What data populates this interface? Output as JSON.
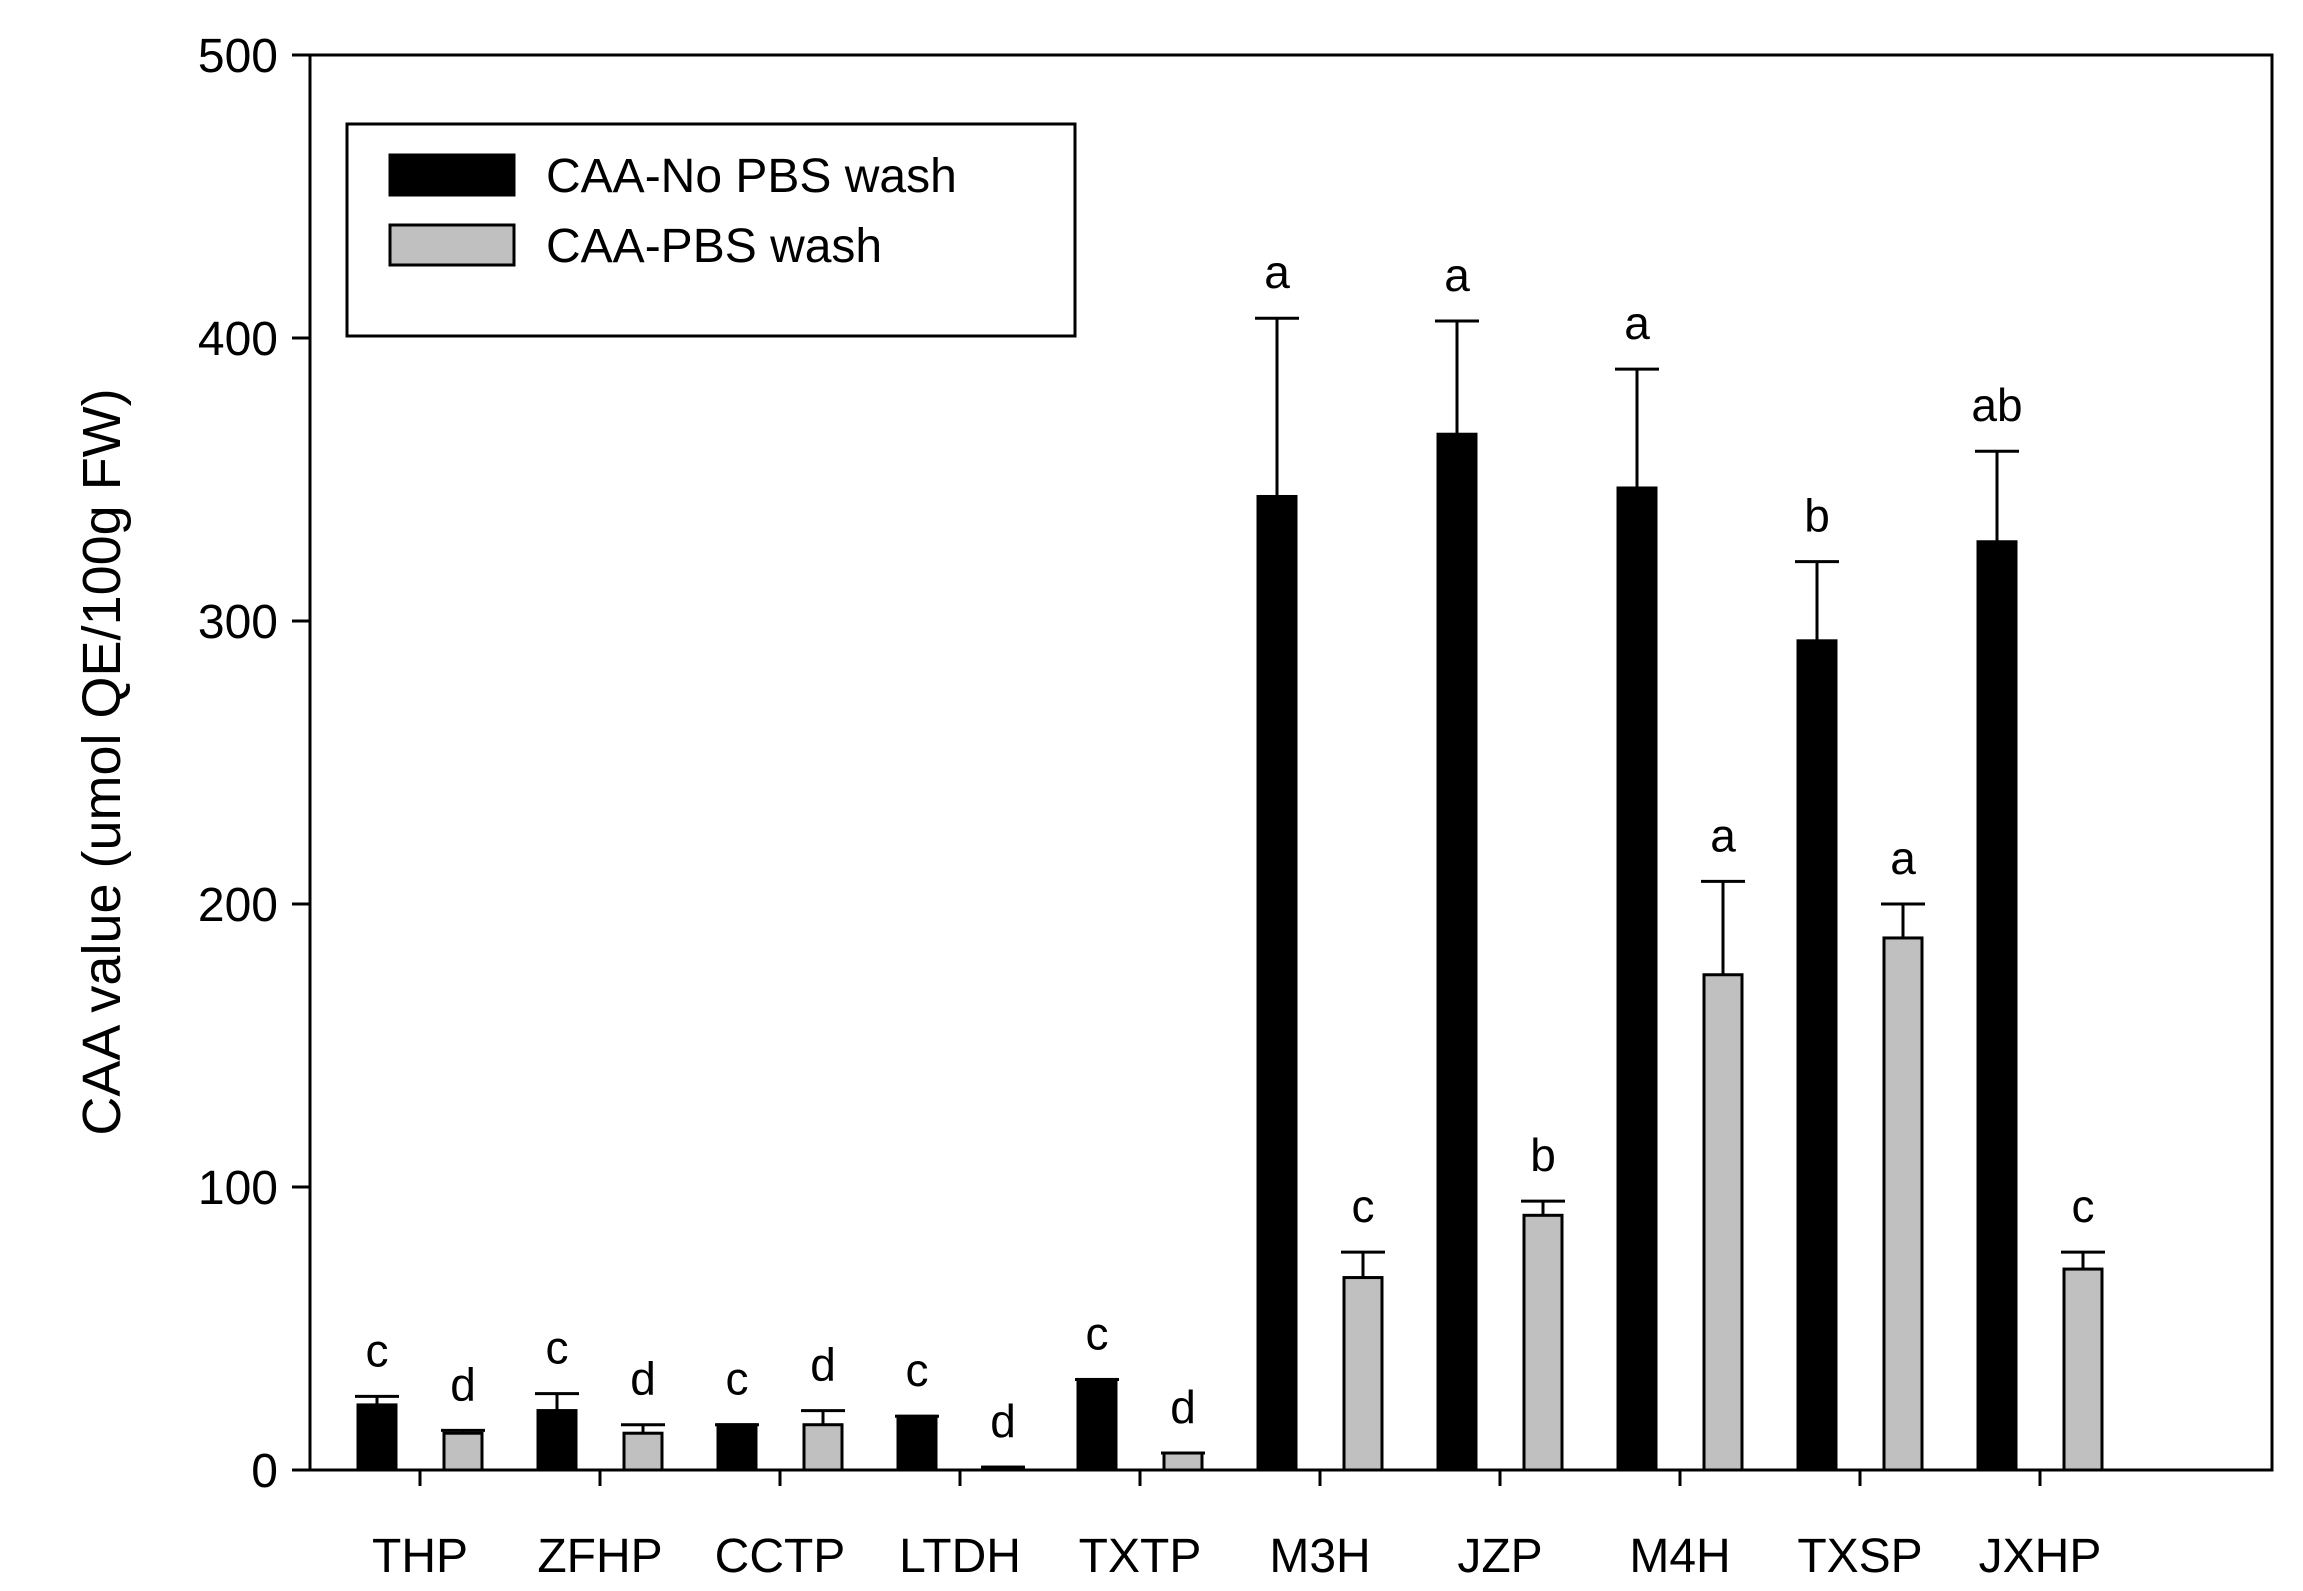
{
  "chart_data": {
    "type": "bar",
    "title": "",
    "xlabel": "",
    "ylabel": "CAA value (umol QE/100g FW)",
    "ylim": [
      0,
      500
    ],
    "yticks": [
      0,
      100,
      200,
      300,
      400,
      500
    ],
    "grid": false,
    "legend_position": "top-left",
    "categories": [
      "THP",
      "ZFHP",
      "CCTP",
      "LTDH",
      "TXTP",
      "M3H",
      "JZP",
      "M4H",
      "TXSP",
      "JXHP"
    ],
    "series": [
      {
        "name": "CAA-No PBS wash",
        "color": "#000000",
        "values": [
          23,
          21,
          16,
          19,
          32,
          344,
          366,
          347,
          293,
          328
        ],
        "errors": [
          3,
          6,
          0,
          0,
          0,
          63,
          40,
          42,
          28,
          32
        ],
        "labels": [
          "c",
          "c",
          "c",
          "c",
          "c",
          "a",
          "a",
          "a",
          "b",
          "ab"
        ]
      },
      {
        "name": "CAA-PBS wash",
        "color": "#c0c0c0",
        "values": [
          13,
          13,
          16,
          1,
          6,
          68,
          90,
          175,
          188,
          71
        ],
        "errors": [
          1,
          3,
          5,
          0,
          0,
          9,
          5,
          33,
          12,
          6
        ],
        "labels": [
          "d",
          "d",
          "d",
          "d",
          "d",
          "c",
          "b",
          "a",
          "a",
          "c"
        ]
      }
    ]
  }
}
